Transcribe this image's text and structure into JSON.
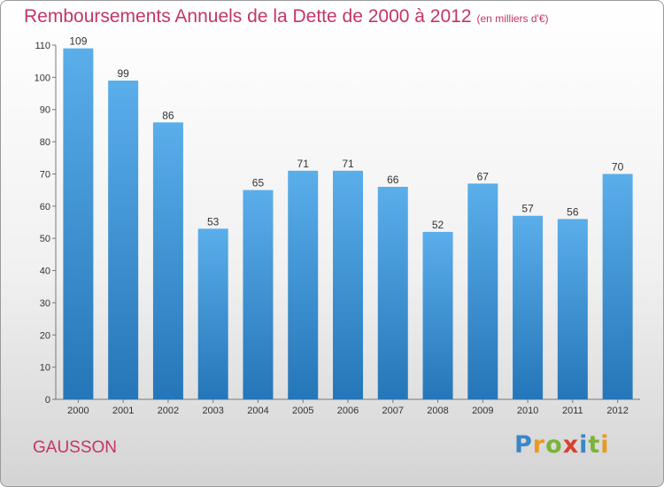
{
  "header": {
    "title": "Remboursements Annuels de la Dette de 2000 à 2012",
    "subtitle": "(en milliers d'€)"
  },
  "footer": {
    "commune": "GAUSSON",
    "logo": "Proxiti"
  },
  "colors": {
    "title": "#c4346b",
    "bar_top": "#5aaeea",
    "bar_bottom": "#2576b8",
    "logo_letters": [
      "#3a86c8",
      "#e89a1e",
      "#7ab33a",
      "#d8412f",
      "#3a86c8",
      "#7ab33a",
      "#e89a1e"
    ]
  },
  "chart_data": {
    "type": "bar",
    "categories": [
      "2000",
      "2001",
      "2002",
      "2003",
      "2004",
      "2005",
      "2006",
      "2007",
      "2008",
      "2009",
      "2010",
      "2011",
      "2012"
    ],
    "values": [
      109,
      99,
      86,
      53,
      65,
      71,
      71,
      66,
      52,
      67,
      57,
      56,
      70
    ],
    "title": "Remboursements Annuels de la Dette de 2000 à 2012",
    "subtitle": "(en milliers d'€)",
    "ylim": [
      0,
      110
    ],
    "yticks": [
      0,
      10,
      20,
      30,
      40,
      50,
      60,
      70,
      80,
      90,
      100,
      110
    ],
    "grid": false,
    "legend": "none"
  }
}
